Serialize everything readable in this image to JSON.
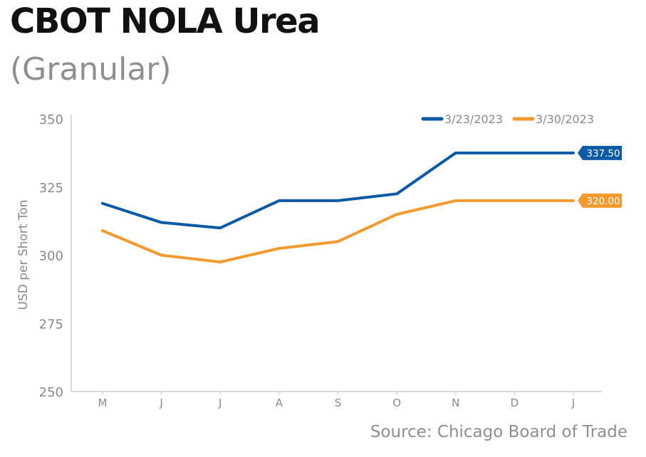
{
  "title": "CBOT NOLA Urea",
  "subtitle": "(Granular)",
  "source": "Source: Chicago Board of Trade",
  "chart_data": {
    "type": "line",
    "ylabel": "USD per Short Ton",
    "categories": [
      "M",
      "J",
      "J",
      "A",
      "S",
      "O",
      "N",
      "D",
      "J"
    ],
    "ylim": [
      250,
      350
    ],
    "yticks": [
      250,
      275,
      300,
      325,
      350
    ],
    "grid": false,
    "legend_position": "top-right",
    "series": [
      {
        "name": "3/23/2023",
        "color": "#0c5aa6",
        "values": [
          319,
          312,
          310,
          320,
          320,
          322.5,
          337.5,
          337.5,
          337.5
        ],
        "end_label": "337.50"
      },
      {
        "name": "3/30/2023",
        "color": "#f29a2e",
        "values": [
          309,
          300,
          297.5,
          302.5,
          305,
          315,
          320,
          320,
          320
        ],
        "end_label": "320.00"
      }
    ]
  }
}
